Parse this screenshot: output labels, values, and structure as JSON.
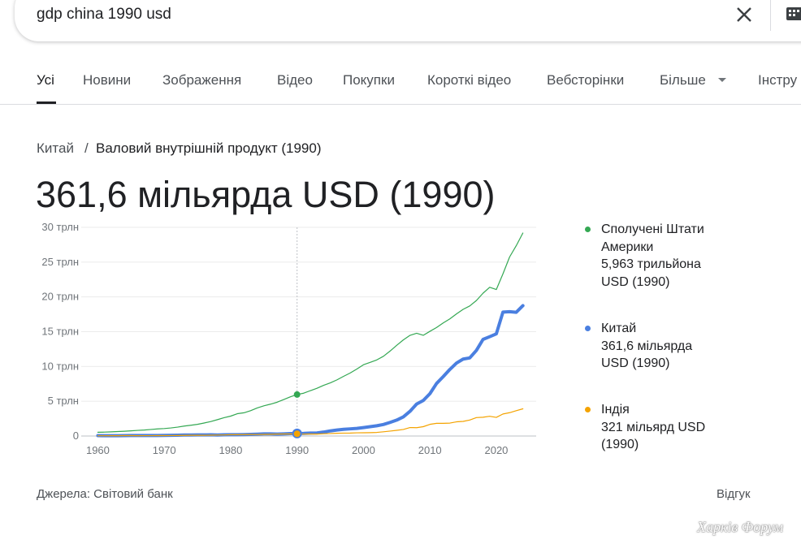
{
  "search": {
    "query": "gdp china 1990 usd"
  },
  "tabs": [
    "Усі",
    "Новини",
    "Зображення",
    "Відео",
    "Покупки",
    "Короткі відео",
    "Вебсторінки",
    "Більше",
    "Інстру"
  ],
  "breadcrumb": [
    "Китай",
    "Валовий внутрішній продукт (1990)"
  ],
  "headline": "361,6 мільярда USD (1990)",
  "chart_data": {
    "type": "line",
    "x": [
      1960,
      1961,
      1962,
      1963,
      1964,
      1965,
      1966,
      1967,
      1968,
      1969,
      1970,
      1971,
      1972,
      1973,
      1974,
      1975,
      1976,
      1977,
      1978,
      1979,
      1980,
      1981,
      1982,
      1983,
      1984,
      1985,
      1986,
      1987,
      1988,
      1989,
      1990,
      1991,
      1992,
      1993,
      1994,
      1995,
      1996,
      1997,
      1998,
      1999,
      2000,
      2001,
      2002,
      2003,
      2004,
      2005,
      2006,
      2007,
      2008,
      2009,
      2010,
      2011,
      2012,
      2013,
      2014,
      2015,
      2016,
      2017,
      2018,
      2019,
      2020,
      2021,
      2022,
      2023,
      2024
    ],
    "series": [
      {
        "name": "Сполучені Штати Америки",
        "label": "5,963 трильйона USD (1990)",
        "color": "#34a853",
        "width": 1.2,
        "values": [
          0.54,
          0.56,
          0.6,
          0.64,
          0.69,
          0.74,
          0.81,
          0.86,
          0.94,
          1.02,
          1.07,
          1.16,
          1.28,
          1.43,
          1.55,
          1.68,
          1.87,
          2.08,
          2.35,
          2.63,
          2.86,
          3.21,
          3.34,
          3.64,
          4.04,
          4.34,
          4.58,
          4.86,
          5.24,
          5.64,
          5.963,
          6.16,
          6.52,
          6.86,
          7.29,
          7.64,
          8.07,
          8.58,
          9.06,
          9.63,
          10.25,
          10.58,
          10.94,
          11.46,
          12.21,
          13.04,
          13.82,
          14.47,
          14.77,
          14.48,
          15.05,
          15.6,
          16.25,
          16.84,
          17.55,
          18.21,
          18.7,
          19.48,
          20.53,
          21.38,
          21.06,
          23.32,
          25.74,
          27.36,
          29.18
        ]
      },
      {
        "name": "Китай",
        "label": "361,6 мільярда USD (1990)",
        "color": "#4a7fe0",
        "width": 4,
        "values": [
          0.06,
          0.05,
          0.047,
          0.051,
          0.06,
          0.07,
          0.076,
          0.073,
          0.071,
          0.079,
          0.093,
          0.1,
          0.114,
          0.139,
          0.144,
          0.164,
          0.154,
          0.175,
          0.15,
          0.178,
          0.191,
          0.196,
          0.205,
          0.23,
          0.26,
          0.309,
          0.301,
          0.273,
          0.312,
          0.348,
          0.3616,
          0.383,
          0.427,
          0.445,
          0.564,
          0.734,
          0.863,
          0.962,
          1.029,
          1.094,
          1.211,
          1.339,
          1.471,
          1.66,
          1.955,
          2.286,
          2.752,
          3.55,
          4.594,
          5.102,
          6.087,
          7.552,
          8.532,
          9.57,
          10.48,
          11.06,
          11.23,
          12.31,
          13.89,
          14.28,
          14.69,
          17.82,
          17.88,
          17.79,
          18.74
        ]
      },
      {
        "name": "Індія",
        "label": "321 мільярд USD (1990)",
        "color": "#f4a300",
        "width": 1.2,
        "values": [
          0.037,
          0.039,
          0.042,
          0.048,
          0.056,
          0.059,
          0.045,
          0.05,
          0.053,
          0.058,
          0.062,
          0.067,
          0.071,
          0.085,
          0.099,
          0.098,
          0.102,
          0.121,
          0.137,
          0.152,
          0.186,
          0.193,
          0.2,
          0.218,
          0.212,
          0.232,
          0.248,
          0.279,
          0.296,
          0.296,
          0.321,
          0.27,
          0.288,
          0.279,
          0.327,
          0.36,
          0.392,
          0.416,
          0.421,
          0.458,
          0.468,
          0.485,
          0.515,
          0.608,
          0.709,
          0.82,
          0.94,
          1.217,
          1.199,
          1.342,
          1.676,
          1.823,
          1.828,
          1.857,
          2.039,
          2.104,
          2.295,
          2.651,
          2.703,
          2.836,
          2.675,
          3.168,
          3.354,
          3.639,
          3.91
        ]
      }
    ],
    "selected_x": 1990,
    "xlim": [
      1957.5,
      2026
    ],
    "xticks": [
      1960,
      1970,
      1980,
      1990,
      2000,
      2010,
      2020
    ],
    "ylim": [
      0,
      30
    ],
    "yticks": [
      0,
      {
        "value": 5,
        "label": "5 трлн"
      },
      {
        "value": 10,
        "label": "10 трлн"
      },
      {
        "value": 15,
        "label": "15 трлн"
      },
      {
        "value": 20,
        "label": "20 трлн"
      },
      {
        "value": 25,
        "label": "25 трлн"
      },
      {
        "value": 30,
        "label": "30 трлн"
      }
    ],
    "grid": true
  },
  "footer": {
    "source": "Джерела: Світовий банк",
    "feedback": "Відгук"
  },
  "watermark": "Харків Форум"
}
